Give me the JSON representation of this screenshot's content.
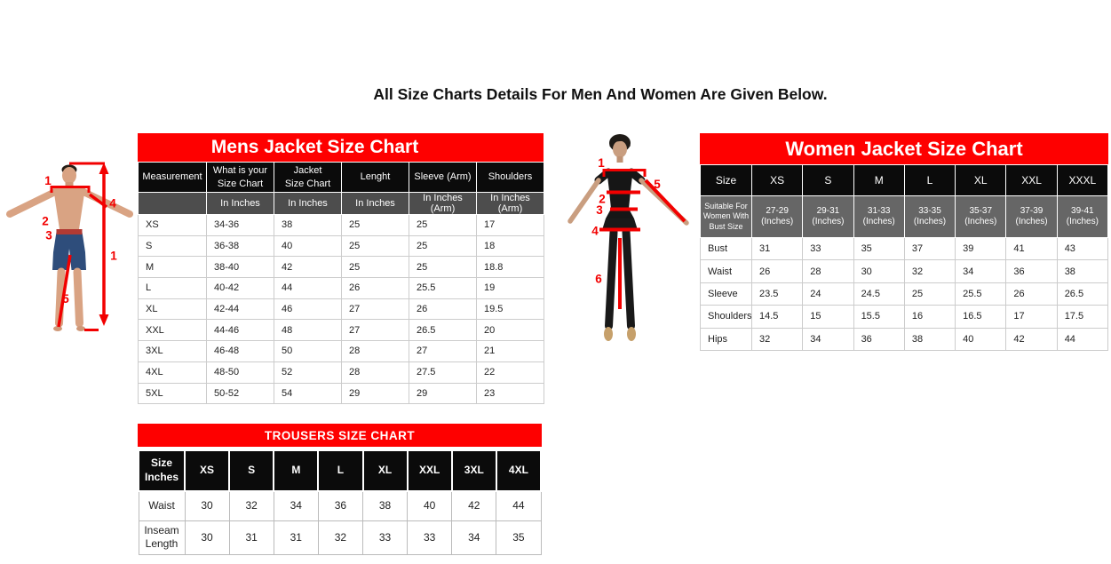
{
  "page": {
    "title": "All Size Charts Details For Men And Women Are Given Below."
  },
  "colors": {
    "accent_red": "#FE0000",
    "header_black": "#0B0B0B",
    "mens_subheader_gray": "#4D4D4D",
    "womens_subheader_gray": "#666666"
  },
  "mens_chart": {
    "title": "Mens Jacket Size Chart",
    "columns": [
      "Measurement",
      "What is your\nSize Chart",
      "Jacket\nSize Chart",
      "Lenght",
      "Sleeve (Arm)",
      "Shoulders"
    ],
    "units_row": [
      "",
      "In Inches",
      "In Inches",
      "In Inches",
      "In Inches (Arm)",
      "In Inches (Arm)"
    ],
    "rows": [
      {
        "size": "XS",
        "values": [
          "34-36",
          "38",
          "25",
          "25",
          "17"
        ]
      },
      {
        "size": "S",
        "values": [
          "36-38",
          "40",
          "25",
          "25",
          "18"
        ]
      },
      {
        "size": "M",
        "values": [
          "38-40",
          "42",
          "25",
          "25",
          "18.8"
        ]
      },
      {
        "size": "L",
        "values": [
          "40-42",
          "44",
          "26",
          "25.5",
          "19"
        ]
      },
      {
        "size": "XL",
        "values": [
          "42-44",
          "46",
          "27",
          "26",
          "19.5"
        ]
      },
      {
        "size": "XXL",
        "values": [
          "44-46",
          "48",
          "27",
          "26.5",
          "20"
        ]
      },
      {
        "size": "3XL",
        "values": [
          "46-48",
          "50",
          "28",
          "27",
          "21"
        ]
      },
      {
        "size": "4XL",
        "values": [
          "48-50",
          "52",
          "28",
          "27.5",
          "22"
        ]
      },
      {
        "size": "5XL",
        "values": [
          "50-52",
          "54",
          "29",
          "29",
          "23"
        ]
      }
    ]
  },
  "womens_chart": {
    "title": "Women Jacket Size Chart",
    "columns": [
      "Size",
      "XS",
      "S",
      "M",
      "L",
      "XL",
      "XXL",
      "XXXL"
    ],
    "bust_label": "Suitable For\nWomen With\nBust Size",
    "bust_sizes": [
      "27-29\n(Inches)",
      "29-31\n(Inches)",
      "31-33\n(Inches)",
      "33-35\n(Inches)",
      "35-37\n(Inches)",
      "37-39\n(Inches)",
      "39-41\n(Inches)"
    ],
    "rows": [
      {
        "label": "Bust",
        "values": [
          "31",
          "33",
          "35",
          "37",
          "39",
          "41",
          "43"
        ]
      },
      {
        "label": "Waist",
        "values": [
          "26",
          "28",
          "30",
          "32",
          "34",
          "36",
          "38"
        ]
      },
      {
        "label": "Sleeve",
        "values": [
          "23.5",
          "24",
          "24.5",
          "25",
          "25.5",
          "26",
          "26.5"
        ]
      },
      {
        "label": "Shoulders",
        "values": [
          "14.5",
          "15",
          "15.5",
          "16",
          "16.5",
          "17",
          "17.5"
        ]
      },
      {
        "label": "Hips",
        "values": [
          "32",
          "34",
          "36",
          "38",
          "40",
          "42",
          "44"
        ]
      }
    ]
  },
  "trousers_chart": {
    "title": "TROUSERS SIZE CHART",
    "columns": [
      "Size\nInches",
      "XS",
      "S",
      "M",
      "L",
      "XL",
      "XXL",
      "3XL",
      "4XL"
    ],
    "rows": [
      {
        "label": "Waist",
        "values": [
          "30",
          "32",
          "34",
          "36",
          "38",
          "40",
          "42",
          "44"
        ]
      },
      {
        "label": "Inseam\nLength",
        "values": [
          "30",
          "31",
          "31",
          "32",
          "33",
          "33",
          "34",
          "35"
        ]
      }
    ]
  },
  "mens_figure": {
    "annotations": {
      "shoulder": "1",
      "chest": "2",
      "waist": "3",
      "sleeve": "4",
      "height": "1",
      "inseam": "5"
    }
  },
  "womens_figure": {
    "annotations": {
      "shoulder": "1",
      "bust": "2",
      "waist": "3",
      "hips": "4",
      "sleeve": "5",
      "inseam": "6"
    }
  }
}
